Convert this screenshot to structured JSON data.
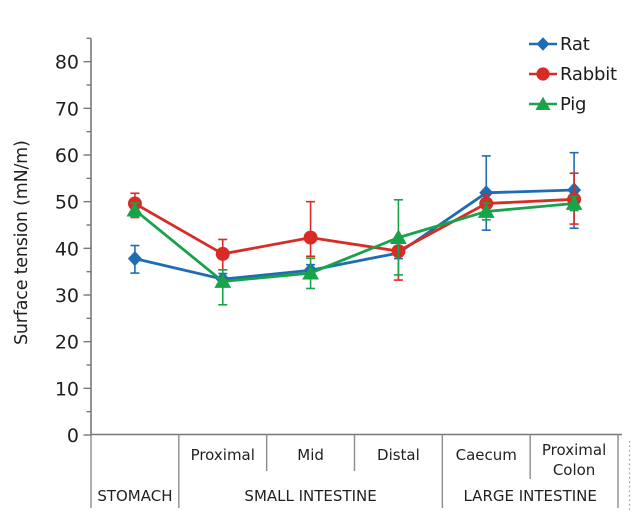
{
  "figure": {
    "style": {
      "axis_color": "#77787b",
      "box_line_color": "#8a8d90",
      "text_color": "#231f20",
      "artifact_color": "#9aa0a6",
      "background": "#ffffff"
    }
  },
  "chart_data": {
    "type": "line",
    "title": "",
    "xlabel": "",
    "ylabel": "Surface tension (mN/m)",
    "ylim": [
      0,
      85
    ],
    "yticks": [
      0,
      10,
      20,
      30,
      40,
      50,
      60,
      70,
      80
    ],
    "y_minor_step": 5,
    "grid": false,
    "legend_position": "top-right",
    "categories": [
      "Stomach",
      "Proximal",
      "Mid",
      "Distal",
      "Caecum",
      "Proximal Colon"
    ],
    "x_sublabels": [
      "",
      "Proximal",
      "Mid",
      "Distal",
      "Caecum",
      "Proximal\nColon"
    ],
    "x_groups": [
      {
        "label": "STOMACH",
        "cols": [
          0,
          1
        ]
      },
      {
        "label": "SMALL INTESTINE",
        "cols": [
          1,
          4
        ]
      },
      {
        "label": "LARGE INTESTINE",
        "cols": [
          4,
          6
        ]
      }
    ],
    "series": [
      {
        "name": "Rat",
        "marker": "diamond",
        "color": "#1f6cb4",
        "values": [
          37.8,
          33.4,
          35.3,
          39.0,
          51.9,
          52.5
        ],
        "err_up": [
          2.8,
          1.2,
          1.2,
          1.2,
          7.9,
          8.0
        ],
        "err_down": [
          3.1,
          1.2,
          1.2,
          1.2,
          8.0,
          8.2
        ]
      },
      {
        "name": "Rabbit",
        "marker": "circle",
        "color": "#d92b26",
        "values": [
          49.6,
          38.8,
          42.3,
          39.4,
          49.6,
          50.5
        ],
        "err_up": [
          2.2,
          3.1,
          7.7,
          3.0,
          1.8,
          5.6
        ],
        "err_down": [
          3.0,
          3.4,
          4.0,
          6.2,
          1.8,
          5.3
        ]
      },
      {
        "name": "Pig",
        "marker": "triangle",
        "color": "#18a24a",
        "values": [
          48.2,
          32.9,
          34.7,
          42.3,
          47.9,
          49.6
        ],
        "err_up": [
          1.5,
          2.5,
          3.2,
          8.1,
          1.8,
          1.5
        ],
        "err_down": [
          1.5,
          5.0,
          3.3,
          8.0,
          1.8,
          1.5
        ]
      }
    ]
  }
}
